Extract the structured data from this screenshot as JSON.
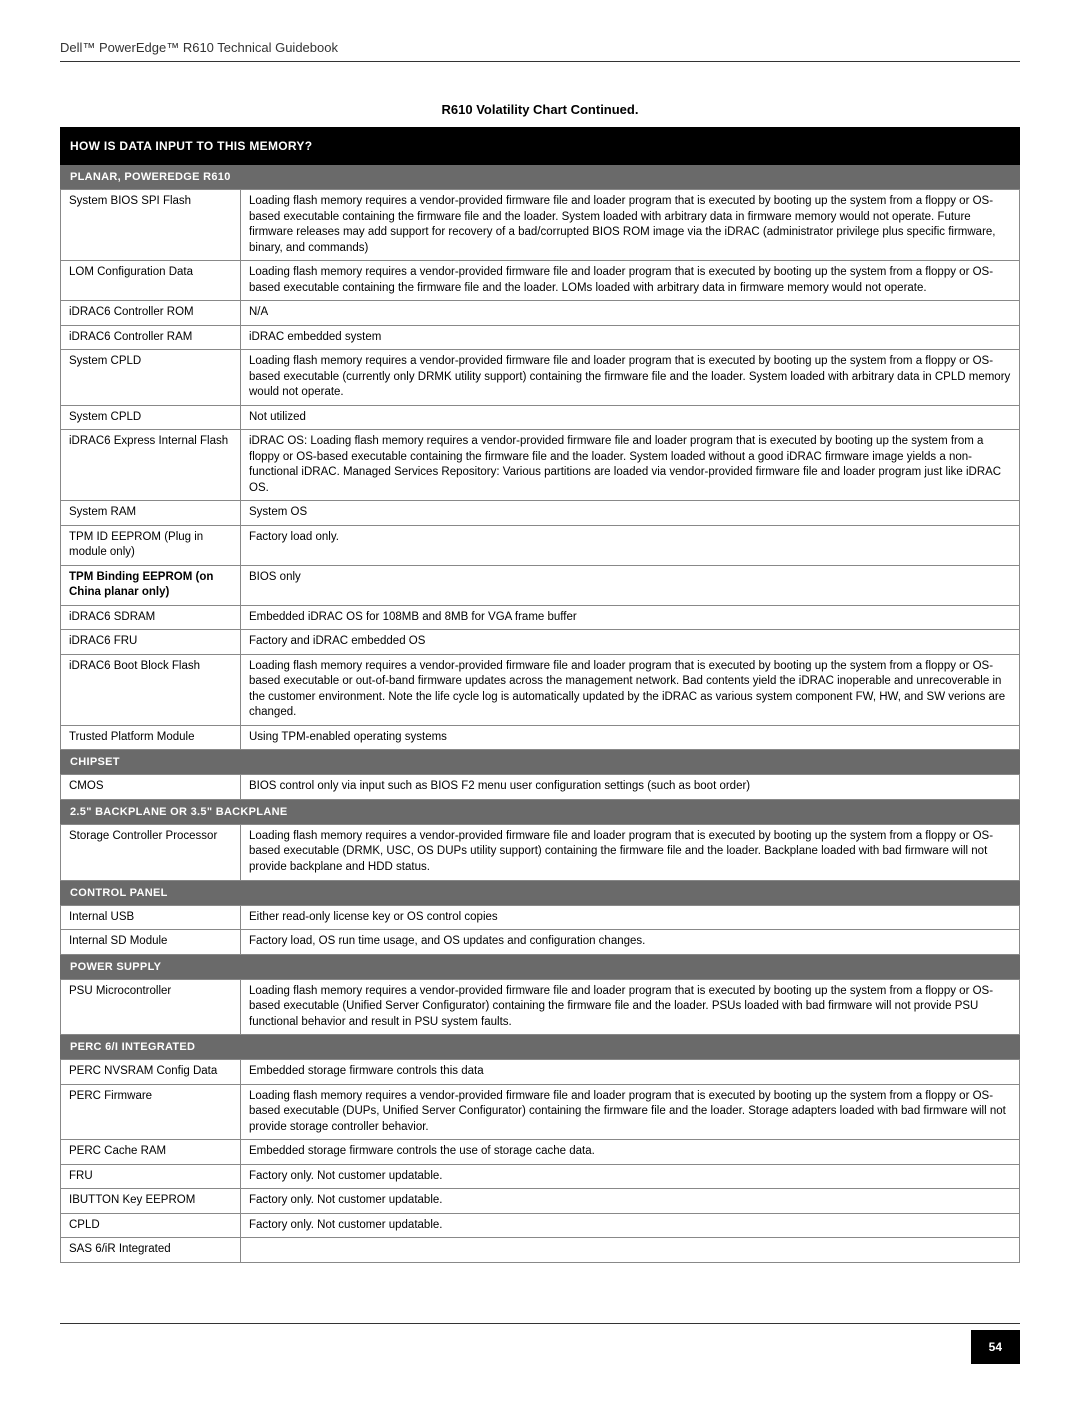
{
  "page": {
    "header_text": "Dell™ PowerEdge™ R610 Technical Guidebook",
    "chart_title": "R610 Volatility Chart Continued.",
    "question_bar": "How Is Data Input To This Memory?",
    "page_number": "54"
  },
  "sections": [
    {
      "title": "Planar, PowerEdge R610",
      "rows": [
        {
          "label": "System BIOS SPI Flash",
          "value": "Loading flash memory requires a vendor-provided firmware file and loader program that is executed by booting up the system from a floppy or OS-based executable containing the firmware file and the loader.  System loaded with arbitrary data in firmware memory would not operate. Future firmware releases may add support for recovery of a bad/corrupted BIOS ROM image via the iDRAC (administrator privilege plus specific firmware, binary, and commands)"
        },
        {
          "label": "LOM Configuration Data",
          "value": "Loading flash memory requires a vendor-provided firmware file and loader program that is executed by booting up the system from a floppy or OS-based executable containing the firmware file and the loader.  LOMs loaded with arbitrary data in firmware memory would not operate."
        },
        {
          "label": "iDRAC6 Controller ROM",
          "value": "N/A"
        },
        {
          "label": "iDRAC6 Controller RAM",
          "value": "iDRAC embedded system"
        },
        {
          "label": "System CPLD",
          "value": "Loading flash memory requires a vendor-provided firmware file and loader program that is executed by booting up the system from a floppy or OS-based executable (currently only DRMK utility support) containing the firmware file and the loader.  System loaded with arbitrary data in CPLD memory would not operate."
        },
        {
          "label": "System CPLD",
          "value": "Not utilized"
        },
        {
          "label": "iDRAC6 Express Internal Flash",
          "value": "iDRAC OS: Loading flash memory requires a vendor-provided firmware file and loader program that is executed by booting up the system from a floppy or OS-based executable containing the firmware file and the loader.  System loaded without a good iDRAC firmware image yields a non-functional iDRAC. Managed Services Repository: Various partitions are loaded via vendor-provided firmware file and loader program just like iDRAC OS."
        },
        {
          "label": "System RAM",
          "value": "System OS"
        },
        {
          "label": "TPM ID EEPROM (Plug in module only)",
          "value": "Factory load only."
        },
        {
          "label": "TPM Binding EEPROM (on China planar only)",
          "value": "BIOS only",
          "bold": true
        },
        {
          "label": "iDRAC6 SDRAM",
          "value": "Embedded iDRAC OS for 108MB and 8MB for VGA frame buffer"
        },
        {
          "label": "iDRAC6 FRU",
          "value": "Factory and iDRAC embedded OS"
        },
        {
          "label": "iDRAC6 Boot Block Flash",
          "value": "Loading flash memory requires a vendor-provided firmware file and loader program that is executed by booting up the system from a floppy or OS-based executable or out-of-band firmware updates across the management network. Bad contents yield the iDRAC inoperable and unrecoverable in the customer environment. Note the life cycle log is automatically updated by the iDRAC as various system component FW, HW, and SW verions are changed."
        },
        {
          "label": "Trusted Platform Module",
          "value": "Using TPM-enabled operating systems"
        }
      ]
    },
    {
      "title": "Chipset",
      "rows": [
        {
          "label": "CMOS",
          "value": "BIOS control only via input such as BIOS F2 menu user configuration settings (such as boot order)"
        }
      ]
    },
    {
      "title": "2.5\" Backplane or 3.5\" Backplane",
      "rows": [
        {
          "label": "Storage Controller Processor",
          "value": "Loading flash memory requires a vendor-provided firmware file and loader program that is executed by booting up the system from a floppy or OS-based executable (DRMK, USC, OS DUPs utility support) containing the firmware file and the loader.  Backplane loaded with bad firmware will not provide backplane and HDD status."
        }
      ]
    },
    {
      "title": "Control Panel",
      "rows": [
        {
          "label": "Internal USB",
          "value": "Either read-only license key or OS control copies"
        },
        {
          "label": "Internal SD Module",
          "value": "Factory load, OS run time usage, and OS updates and configuration changes."
        }
      ]
    },
    {
      "title": "Power Supply",
      "rows": [
        {
          "label": "PSU Microcontroller",
          "value": "Loading flash memory requires a vendor-provided firmware file and loader program that is executed by booting up the system from a floppy or OS-based executable (Unified Server Configurator) containing the firmware file and the loader.  PSUs loaded with bad firmware will not provide PSU functional behavior and result in PSU system faults."
        }
      ]
    },
    {
      "title": "PERC 6/i Integrated",
      "rows": [
        {
          "label": "PERC NVSRAM Config Data",
          "value": "Embedded storage firmware controls this data"
        },
        {
          "label": "PERC Firmware",
          "value": "Loading flash memory requires a vendor-provided firmware file and loader program that is executed by booting up the system from a floppy or OS-based executable (DUPs, Unified Server Configurator) containing the firmware file and the loader.  Storage adapters loaded with bad firmware will not provide storage controller behavior."
        },
        {
          "label": "PERC Cache RAM",
          "value": "Embedded storage firmware controls the use of storage cache data."
        },
        {
          "label": "FRU",
          "value": "Factory only. Not customer updatable."
        },
        {
          "label": "IBUTTON Key EEPROM",
          "value": "Factory only. Not customer updatable."
        },
        {
          "label": "CPLD",
          "value": "Factory only. Not customer updatable."
        },
        {
          "label": "SAS 6/iR Integrated",
          "value": ""
        }
      ]
    }
  ]
}
